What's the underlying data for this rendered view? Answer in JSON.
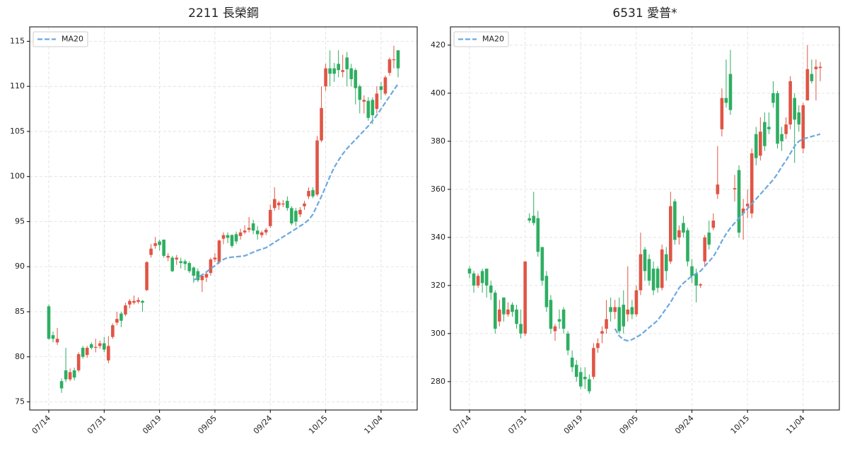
{
  "chart_data": [
    {
      "type": "candlestick",
      "title": "2211 長榮鋼",
      "categories": [
        "07/14",
        null,
        null,
        null,
        null,
        null,
        null,
        null,
        null,
        null,
        null,
        null,
        null,
        "07/31",
        null,
        null,
        null,
        null,
        null,
        null,
        null,
        null,
        null,
        null,
        null,
        null,
        "08/19",
        null,
        null,
        null,
        null,
        null,
        null,
        null,
        null,
        null,
        null,
        null,
        null,
        "09/05",
        null,
        null,
        null,
        null,
        null,
        null,
        null,
        null,
        null,
        null,
        null,
        null,
        "09/24",
        null,
        null,
        null,
        null,
        null,
        null,
        null,
        null,
        null,
        null,
        null,
        null,
        "10/15",
        null,
        null,
        null,
        null,
        null,
        null,
        null,
        null,
        null,
        null,
        null,
        null,
        "11/04",
        null,
        null,
        null,
        null
      ],
      "open": [
        85.6,
        82.4,
        81.6,
        77.3,
        78.5,
        77.5,
        78.5,
        78.5,
        81.0,
        80.2,
        81.4,
        81.0,
        81.2,
        81.5,
        79.6,
        82.2,
        83.8,
        84.8,
        84.7,
        85.8,
        86.0,
        86.1,
        86.2,
        87.4,
        91.3,
        92.3,
        92.8,
        93.0,
        91.0,
        91.0,
        90.8,
        90.6,
        90.6,
        90.4,
        89.9,
        89.5,
        88.5,
        88.8,
        89.3,
        90.8,
        90.5,
        93.1,
        93.5,
        93.5,
        93.6,
        93.4,
        93.8,
        94.1,
        94.8,
        94.0,
        93.5,
        93.8,
        94.5,
        96.5,
        96.8,
        96.9,
        97.3,
        96.5,
        96.2,
        95.8,
        96.7,
        97.8,
        98.5,
        98.0,
        104.0,
        110.0,
        112.0,
        112.0,
        112.5,
        111.6,
        113.2,
        112.0,
        111.8,
        110.0,
        108.3,
        108.4,
        108.5,
        107.5,
        110.0,
        109.2,
        111.5,
        112.9,
        114.0
      ],
      "high": [
        85.8,
        82.8,
        83.2,
        77.6,
        81.0,
        78.7,
        78.8,
        80.5,
        81.2,
        81.2,
        81.6,
        82.0,
        81.8,
        82.2,
        82.3,
        83.7,
        85.0,
        85.0,
        86.0,
        86.4,
        86.8,
        86.6,
        86.3,
        90.6,
        92.5,
        93.3,
        93.0,
        93.0,
        91.5,
        91.2,
        91.3,
        91.0,
        90.8,
        90.6,
        90.0,
        89.8,
        89.2,
        89.5,
        91.0,
        91.5,
        93.0,
        93.8,
        93.8,
        93.6,
        93.9,
        94.2,
        94.6,
        95.5,
        95.2,
        94.5,
        94.0,
        94.3,
        96.9,
        98.8,
        97.3,
        97.4,
        97.8,
        96.7,
        96.5,
        96.6,
        97.3,
        98.8,
        98.8,
        104.5,
        110.0,
        112.5,
        114.0,
        112.6,
        114.0,
        113.5,
        113.8,
        112.5,
        112.0,
        110.2,
        109.0,
        108.8,
        108.8,
        110.0,
        110.5,
        111.2,
        113.2,
        114.5,
        114.0
      ],
      "low": [
        81.9,
        81.6,
        81.3,
        76.0,
        77.2,
        77.3,
        77.4,
        78.3,
        79.8,
        79.9,
        80.8,
        80.5,
        80.9,
        80.5,
        79.3,
        82.0,
        83.5,
        83.3,
        84.5,
        85.4,
        85.8,
        85.9,
        85.0,
        87.3,
        91.0,
        92.0,
        91.8,
        91.0,
        90.6,
        89.4,
        90.2,
        89.8,
        89.6,
        89.3,
        88.2,
        88.3,
        87.2,
        88.3,
        89.0,
        90.5,
        90.3,
        92.5,
        92.6,
        92.1,
        92.5,
        93.0,
        93.6,
        93.8,
        93.6,
        93.0,
        93.2,
        93.5,
        94.3,
        96.2,
        96.3,
        96.6,
        96.2,
        94.6,
        94.5,
        95.5,
        96.3,
        97.5,
        97.6,
        97.8,
        103.8,
        109.5,
        110.0,
        110.5,
        111.0,
        111.0,
        110.0,
        110.0,
        108.0,
        107.0,
        107.0,
        106.2,
        105.8,
        107.0,
        108.5,
        109.0,
        111.2,
        112.0,
        111.0
      ],
      "close": [
        82.0,
        82.0,
        82.0,
        76.5,
        77.5,
        78.3,
        77.7,
        80.3,
        80.0,
        81.0,
        81.0,
        81.1,
        81.5,
        80.8,
        81.2,
        83.5,
        84.2,
        84.0,
        85.7,
        86.2,
        86.2,
        86.3,
        86.0,
        90.5,
        92.0,
        92.6,
        92.4,
        91.2,
        91.2,
        89.5,
        91.0,
        90.4,
        90.3,
        89.5,
        89.0,
        88.5,
        89.0,
        89.2,
        90.8,
        91.0,
        92.9,
        93.5,
        93.2,
        92.3,
        92.8,
        93.8,
        94.0,
        94.3,
        94.0,
        93.6,
        93.8,
        94.1,
        96.3,
        97.5,
        97.1,
        97.0,
        96.5,
        94.8,
        95.0,
        96.3,
        97.0,
        98.4,
        97.8,
        104.0,
        107.6,
        112.0,
        111.4,
        111.4,
        111.8,
        111.8,
        111.9,
        110.8,
        109.8,
        108.5,
        108.5,
        106.5,
        106.8,
        109.2,
        109.6,
        111.0,
        113.0,
        113.0,
        112.0
      ],
      "up_color": "#e05545",
      "down_color": "#2eae62",
      "series": [
        {
          "name": "MA20",
          "color": "#6ca8e0",
          "values": [
            null,
            null,
            null,
            null,
            null,
            null,
            null,
            null,
            null,
            null,
            null,
            null,
            null,
            null,
            null,
            null,
            null,
            null,
            null,
            null,
            null,
            null,
            null,
            null,
            null,
            null,
            null,
            null,
            null,
            null,
            null,
            null,
            null,
            null,
            88.5,
            88.8,
            89.1,
            89.4,
            89.8,
            90.1,
            90.5,
            90.8,
            91.0,
            91.05,
            91.1,
            91.15,
            91.2,
            91.4,
            91.6,
            91.8,
            91.95,
            92.1,
            92.4,
            92.7,
            93.0,
            93.3,
            93.6,
            93.9,
            94.2,
            94.5,
            94.8,
            95.2,
            95.8,
            96.8,
            97.8,
            98.9,
            100.0,
            101.0,
            101.8,
            102.5,
            103.1,
            103.6,
            104.1,
            104.6,
            105.1,
            105.6,
            106.2,
            106.8,
            107.5,
            108.2,
            108.9,
            109.6,
            110.3
          ]
        }
      ],
      "ylim": [
        74.1,
        116.6
      ],
      "yticks": [
        75,
        80,
        85,
        90,
        95,
        100,
        105,
        110,
        115
      ],
      "grid": true,
      "legend": "upper left"
    },
    {
      "type": "candlestick",
      "title": "6531 愛普*",
      "categories": [
        "07/14",
        null,
        null,
        null,
        null,
        null,
        null,
        null,
        null,
        null,
        null,
        null,
        null,
        "07/31",
        null,
        null,
        null,
        null,
        null,
        null,
        null,
        null,
        null,
        null,
        null,
        null,
        "08/19",
        null,
        null,
        null,
        null,
        null,
        null,
        null,
        null,
        null,
        null,
        null,
        null,
        "09/05",
        null,
        null,
        null,
        null,
        null,
        null,
        null,
        null,
        null,
        null,
        null,
        null,
        "09/24",
        null,
        null,
        null,
        null,
        null,
        null,
        null,
        null,
        null,
        null,
        null,
        null,
        "10/15",
        null,
        null,
        null,
        null,
        null,
        null,
        null,
        null,
        null,
        null,
        null,
        null,
        "11/04",
        null,
        null,
        null,
        null
      ],
      "open": [
        327,
        325,
        320,
        326,
        327,
        320,
        317,
        305,
        315,
        308,
        312,
        310,
        304,
        300,
        348,
        349,
        348,
        336,
        324,
        314,
        301,
        306,
        310,
        300,
        290,
        287,
        284,
        282,
        281,
        282,
        294,
        300,
        302,
        311,
        309,
        311,
        312,
        308,
        311,
        308,
        318,
        335,
        331,
        327,
        327,
        319,
        333,
        330,
        355,
        340,
        346,
        343,
        328,
        325,
        320,
        330,
        342,
        344,
        358,
        385,
        398,
        408,
        360,
        368,
        350,
        353,
        350,
        383,
        374,
        388,
        386,
        400,
        400,
        383,
        383,
        387,
        398,
        392,
        377,
        397,
        408,
        410,
        410.5
      ],
      "high": [
        328,
        326,
        325,
        327,
        327,
        322,
        318,
        314,
        315,
        313,
        313,
        312,
        310,
        330,
        350,
        359,
        351,
        336,
        326,
        316,
        304,
        310,
        311,
        301,
        293,
        289,
        286,
        286,
        283,
        296,
        298,
        303,
        314,
        315,
        314,
        315,
        318,
        328,
        314,
        320,
        342,
        336,
        333,
        330,
        328,
        337,
        336,
        359,
        356,
        345,
        349,
        344,
        331,
        327,
        321,
        341,
        347,
        350,
        378,
        402,
        414,
        418,
        366,
        370,
        356,
        360,
        377,
        386,
        390,
        392,
        392,
        405,
        401,
        386,
        390,
        407,
        400,
        395,
        396,
        420,
        414,
        414,
        413
      ],
      "low": [
        323,
        317,
        319,
        317,
        315,
        314,
        300,
        303,
        305,
        307,
        307,
        302,
        298,
        299,
        346,
        345,
        332,
        320,
        309,
        300,
        297,
        302,
        300,
        291,
        284,
        280,
        277,
        277,
        275,
        281,
        292,
        296,
        300,
        305,
        306,
        300,
        300,
        305,
        306,
        307,
        316,
        322,
        320,
        316,
        317,
        318,
        322,
        329,
        337,
        337,
        340,
        328,
        321,
        313,
        319,
        328,
        335,
        343,
        356,
        382,
        394,
        391,
        355,
        340,
        339,
        348,
        348,
        370,
        372,
        376,
        383,
        394,
        377,
        376,
        381,
        385,
        371,
        384,
        375,
        397,
        404,
        397,
        405
      ],
      "close": [
        325,
        320,
        324,
        321,
        320,
        317,
        302,
        310,
        308,
        310,
        309,
        304,
        300,
        330,
        347,
        346,
        334,
        322,
        311,
        302,
        303,
        305,
        302,
        293,
        286,
        282,
        278,
        281,
        276,
        294,
        296,
        301,
        306,
        309,
        311,
        301,
        303,
        310,
        308,
        318,
        333,
        326,
        322,
        318,
        319,
        335,
        326,
        353,
        339,
        343,
        342,
        330,
        324,
        320,
        320.5,
        340,
        337,
        347,
        362,
        398,
        396,
        393,
        360.5,
        342,
        352,
        354,
        375,
        373,
        384,
        378,
        385,
        396,
        379,
        380,
        387,
        405,
        389,
        387,
        395,
        410,
        405,
        411,
        411
      ],
      "up_color": "#e05545",
      "down_color": "#2eae62",
      "series": [
        {
          "name": "MA20",
          "color": "#6ca8e0",
          "values": [
            null,
            null,
            null,
            null,
            null,
            null,
            null,
            null,
            null,
            null,
            null,
            null,
            null,
            null,
            null,
            null,
            null,
            null,
            null,
            null,
            null,
            null,
            null,
            null,
            null,
            null,
            null,
            null,
            null,
            null,
            null,
            null,
            null,
            null,
            302,
            299,
            297.5,
            297,
            297.5,
            298.5,
            299.5,
            301,
            302.5,
            304,
            305.5,
            308,
            310.5,
            313,
            316,
            319,
            321,
            322.5,
            324,
            325,
            326,
            328,
            330,
            332,
            335,
            338.5,
            341.5,
            344,
            346,
            348,
            350,
            352,
            354,
            356,
            358,
            360,
            362,
            364,
            366.5,
            369.5,
            372,
            375,
            378,
            380,
            381,
            381.5,
            382,
            382.5,
            383
          ]
        }
      ],
      "ylim": [
        268.2,
        427.6
      ],
      "yticks": [
        280,
        300,
        320,
        340,
        360,
        380,
        400,
        420
      ],
      "grid": true,
      "legend": "upper left"
    }
  ]
}
